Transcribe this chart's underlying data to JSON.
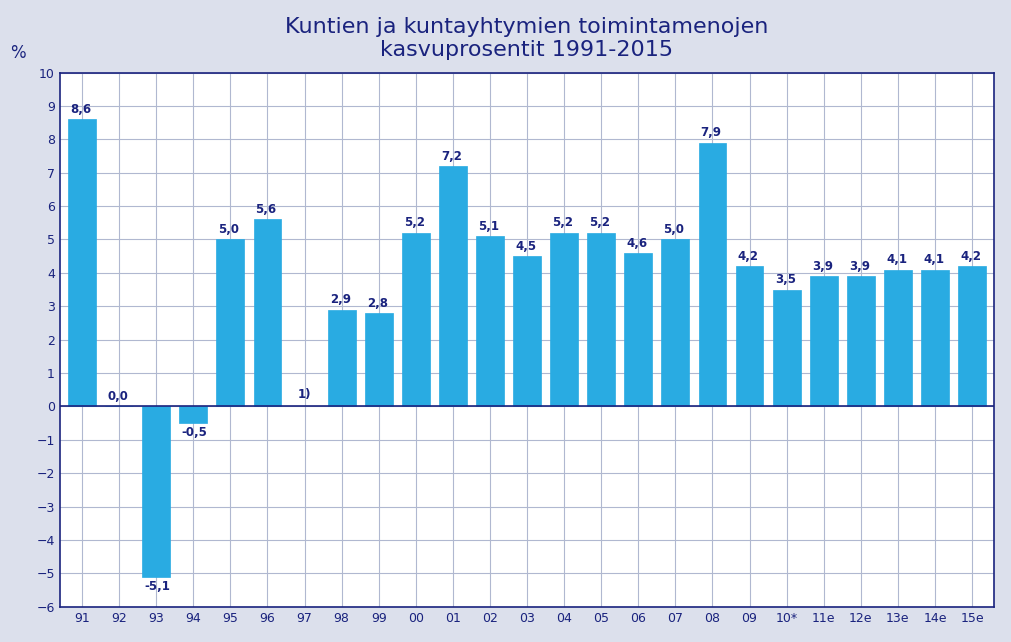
{
  "categories": [
    "91",
    "92",
    "93",
    "94",
    "95",
    "96",
    "97",
    "98",
    "99",
    "00",
    "01",
    "02",
    "03",
    "04",
    "05",
    "06",
    "07",
    "08",
    "09",
    "10*",
    "11e",
    "12e",
    "13e",
    "14e",
    "15e"
  ],
  "values": [
    8.6,
    0.0,
    -5.1,
    -0.5,
    5.0,
    5.6,
    null,
    2.9,
    2.8,
    5.2,
    7.2,
    5.1,
    4.5,
    5.2,
    5.2,
    4.6,
    5.0,
    7.9,
    4.2,
    3.5,
    3.9,
    3.9,
    4.1,
    4.1,
    4.2
  ],
  "bar_color": "#29ABE2",
  "bar_edge_color": "#29ABE2",
  "title_line1": "Kuntien ja kuntayhtymien toimintamenojen",
  "title_line2": "kasvuprosentit 1991-2015",
  "ylabel": "%",
  "ylim": [
    -6,
    10
  ],
  "yticks": [
    -6,
    -5,
    -4,
    -3,
    -2,
    -1,
    0,
    1,
    2,
    3,
    4,
    5,
    6,
    7,
    8,
    9,
    10
  ],
  "title_color": "#1a237e",
  "axis_color": "#1a237e",
  "grid_color": "#b0b8d0",
  "label_color": "#1a237e",
  "ylabel_color": "#1a237e",
  "note_97": "1)",
  "plot_bg_color": "#ffffff",
  "fig_bg_color": "#dce0ec",
  "label_fontsize": 8.5,
  "title_fontsize": 16,
  "tick_fontsize": 9,
  "bar_width": 0.75
}
